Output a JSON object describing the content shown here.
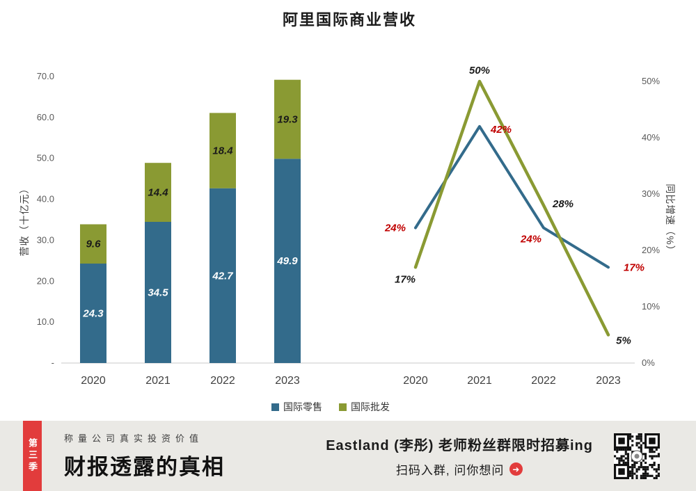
{
  "title": "阿里国际商业营收",
  "chart_data": [
    {
      "type": "bar",
      "stacked": true,
      "categories": [
        "2020",
        "2021",
        "2022",
        "2023"
      ],
      "series": [
        {
          "name": "国际零售",
          "values": [
            24.3,
            34.5,
            42.7,
            49.9
          ],
          "labels": [
            "24.3",
            "34.5",
            "42.7",
            "49.9"
          ],
          "color": "#336b8b",
          "label_color": "#ffffff"
        },
        {
          "name": "国际批发",
          "values": [
            9.6,
            14.4,
            18.4,
            19.3
          ],
          "labels": [
            "9.6",
            "14.4",
            "18.4",
            "19.3"
          ],
          "color": "#8a9a33",
          "label_color": "#1a1a1a"
        }
      ],
      "ylabel": "营收（十亿元）",
      "ylim": [
        0,
        70
      ],
      "yticks": [
        "-",
        "10.0",
        "20.0",
        "30.0",
        "40.0",
        "50.0",
        "60.0",
        "70.0"
      ],
      "legend_position": "bottom",
      "grid": false
    },
    {
      "type": "line",
      "categories": [
        "2020",
        "2021",
        "2022",
        "2023"
      ],
      "series": [
        {
          "name": "国际零售同比增速",
          "values": [
            24,
            42,
            24,
            17
          ],
          "labels": [
            "24%",
            "42%",
            "24%",
            "17%"
          ],
          "color": "#336b8b",
          "label_color": "#c00000"
        },
        {
          "name": "国际批发同比增速",
          "values": [
            17,
            50,
            28,
            5
          ],
          "labels": [
            "17%",
            "50%",
            "28%",
            "5%"
          ],
          "color": "#8a9a33",
          "label_color": "#1a1a1a"
        }
      ],
      "ylabel": "同比增速（%）",
      "ylim": [
        0,
        50
      ],
      "yticks": [
        "0%",
        "10%",
        "20%",
        "30%",
        "40%",
        "50%"
      ],
      "grid": false
    }
  ],
  "legend": [
    {
      "label": "国际零售",
      "color": "#336b8b"
    },
    {
      "label": "国际批发",
      "color": "#8a9a33"
    }
  ],
  "banner": {
    "season_tab": "第三季",
    "tagline": "称量公司真实投资价值",
    "headline": "财报透露的真相",
    "promo_line1": "Eastland (李彤) 老师粉丝群限时招募ing",
    "promo_line2": "扫码入群, 问你想问",
    "arrow_glyph": "➜",
    "accent_red": "#e23c3c",
    "background": "#eae9e5"
  }
}
